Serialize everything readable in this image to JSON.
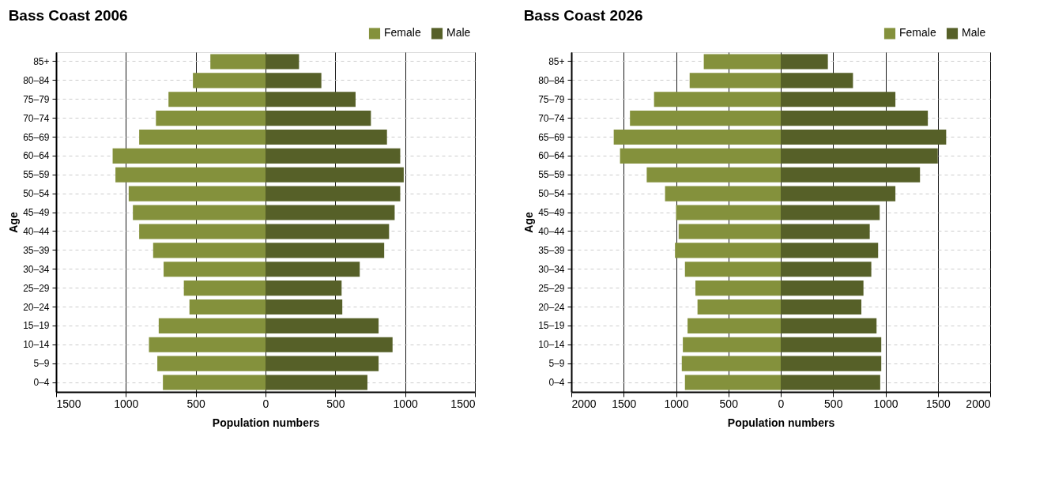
{
  "chart_data": [
    {
      "type": "bar",
      "orientation": "horizontal",
      "title": "Bass Coast 2006",
      "xlabel": "Population numbers",
      "ylabel": "Age",
      "categories": [
        "85+",
        "80–84",
        "75–79",
        "70–74",
        "65–69",
        "60–64",
        "55–59",
        "50–54",
        "45–49",
        "40–44",
        "35–39",
        "30–34",
        "25–29",
        "20–24",
        "15–19",
        "10–14",
        "5–9",
        "0–4"
      ],
      "series": [
        {
          "name": "Female",
          "color": "#84913c",
          "values": [
            -395,
            -520,
            -695,
            -785,
            -905,
            -1095,
            -1075,
            -980,
            -950,
            -905,
            -805,
            -730,
            -585,
            -545,
            -765,
            -835,
            -775,
            -735
          ]
        },
        {
          "name": "Male",
          "color": "#566028",
          "values": [
            240,
            400,
            645,
            755,
            870,
            965,
            990,
            965,
            925,
            885,
            850,
            675,
            545,
            550,
            810,
            910,
            810,
            730
          ]
        }
      ],
      "xlim": [
        -1500,
        1500
      ],
      "xticks": [
        {
          "value": -1500,
          "label": "1500"
        },
        {
          "value": -1000,
          "label": "1000"
        },
        {
          "value": -500,
          "label": "500"
        },
        0,
        500,
        1000,
        1500
      ],
      "grid": true,
      "legend": "top right",
      "stacked": true
    },
    {
      "type": "bar",
      "orientation": "horizontal",
      "title": "Bass Coast 2026",
      "xlabel": "Population numbers",
      "ylabel": "Age",
      "categories": [
        "85+",
        "80–84",
        "75–79",
        "70–74",
        "65–69",
        "60–64",
        "55–59",
        "50–54",
        "45–49",
        "40–44",
        "35–39",
        "30–34",
        "25–29",
        "20–24",
        "15–19",
        "10–14",
        "5–9",
        "0–4"
      ],
      "series": [
        {
          "name": "Female",
          "color": "#84913c",
          "values": [
            -735,
            -870,
            -1210,
            -1440,
            -1595,
            -1535,
            -1280,
            -1105,
            -1000,
            -975,
            -1010,
            -915,
            -815,
            -795,
            -890,
            -935,
            -945,
            -915
          ]
        },
        {
          "name": "Male",
          "color": "#566028",
          "values": [
            450,
            690,
            1095,
            1405,
            1580,
            1500,
            1330,
            1095,
            945,
            850,
            930,
            865,
            790,
            770,
            915,
            960,
            960,
            950
          ]
        }
      ],
      "xlim": [
        -2000,
        2000
      ],
      "xticks": [
        {
          "value": -2000,
          "label": "2000"
        },
        {
          "value": -1500,
          "label": "1500"
        },
        {
          "value": -1000,
          "label": "1000"
        },
        {
          "value": -500,
          "label": "500"
        },
        0,
        500,
        1000,
        1500,
        2000
      ],
      "grid": true,
      "legend": "top right",
      "stacked": true
    }
  ]
}
